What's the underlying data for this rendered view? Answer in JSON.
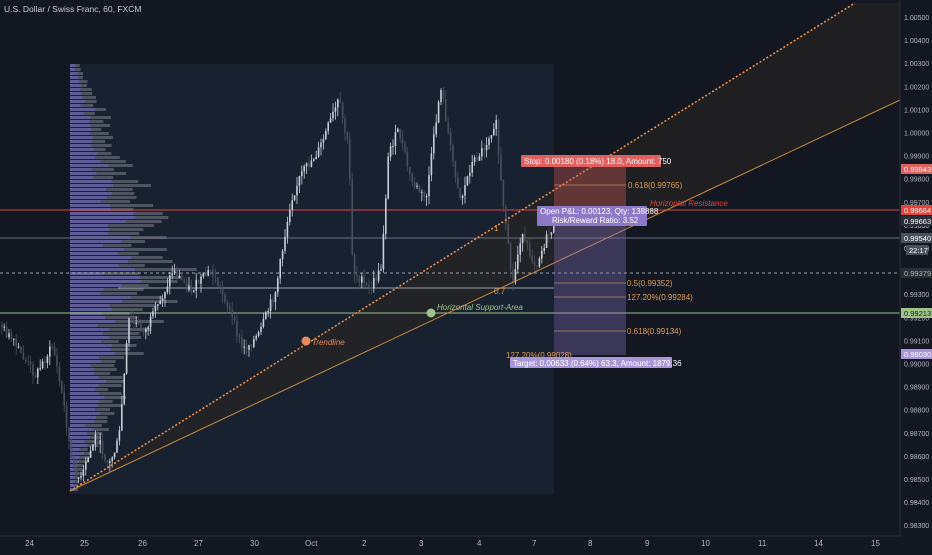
{
  "header": {
    "title": "U.S. Dollar / Swiss Franc, 60, FXCM"
  },
  "price_axis": {
    "ticks": [
      "1.00500",
      "1.00400",
      "1.00300",
      "1.00200",
      "1.00100",
      "1.00000",
      "0.99900",
      "0.99800",
      "0.99700",
      "0.99600",
      "0.99500",
      "0.99400",
      "0.99300",
      "0.99200",
      "0.99100",
      "0.99000",
      "0.98900",
      "0.98800",
      "0.98700",
      "0.98600",
      "0.98500",
      "0.98400",
      "0.98300"
    ],
    "badges": {
      "stop": "0.99843",
      "resistance": "0.99664",
      "entry": "0.99663",
      "current": "0.99540",
      "countdown": "22:17",
      "mid": "0.99379",
      "support": "0.99213",
      "target": "0.99030"
    }
  },
  "time_axis": {
    "labels": [
      "24",
      "25",
      "26",
      "27",
      "30",
      "Oct",
      "2",
      "3",
      "4",
      "7",
      "8",
      "9",
      "10",
      "11",
      "14",
      "15"
    ]
  },
  "position": {
    "stop_label": "Stop: 0.00180 (0.18%) 18.0, Amount: 750",
    "info_line1": "Open P&L: 0.00123, Qty: 138888",
    "info_line2": "Risk/Reward Ratio: 3.52",
    "target_label": "Target: 0.00633 (0.64%) 63.3, Amount: 1879.36"
  },
  "annotations": {
    "horizontal_resistance": "Horizontal Resistance",
    "horizontal_support": "Horizontal Support-Area",
    "trendline": "Trendline"
  },
  "fib": {
    "l1": "0.618(0.99765)",
    "l2": "0.5(0.99352)",
    "l3": "127.20%(0.99284)",
    "l4": "0.618(0.99134)",
    "l5": "127.20%(0.99028)",
    "m1": "1",
    "m2": "0.7"
  },
  "colors": {
    "background": "#131722",
    "up_candle": "#c9cfd9",
    "down_candle": "#4a4f5c",
    "resistance": "#e0443b",
    "support": "#9fc38a",
    "trendline": "#f08d4a",
    "stop_box": "#e06060",
    "profit_box": "#8e78c8",
    "volume_profile": "#8c86c8",
    "fib": "#d8a25a"
  }
}
